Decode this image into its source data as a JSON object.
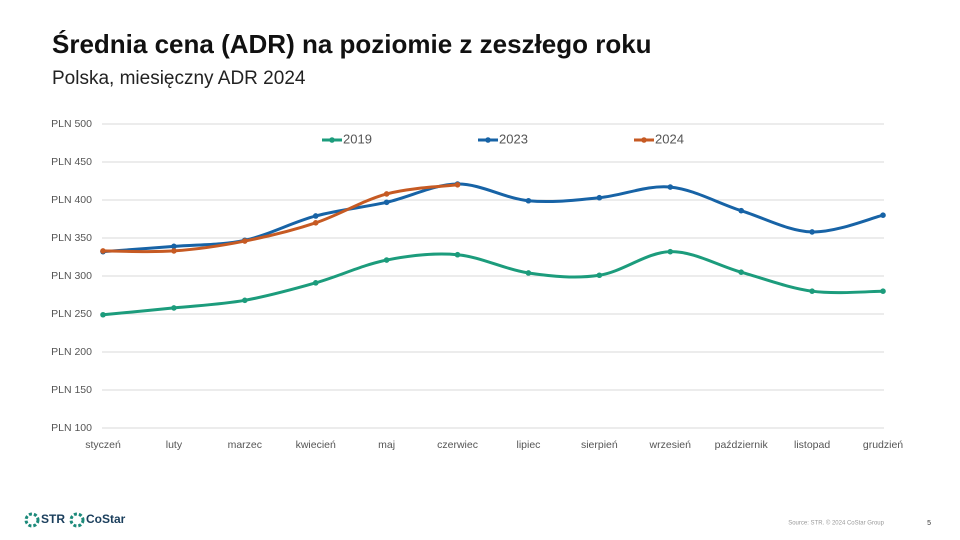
{
  "chart_data": {
    "type": "line",
    "title": "Średnia cena (ADR) na poziomie z zeszłego roku",
    "subtitle": "Polska, miesięczny ADR 2024",
    "categories": [
      "styczeń",
      "luty",
      "marzec",
      "kwiecień",
      "maj",
      "czerwiec",
      "lipiec",
      "sierpień",
      "wrzesień",
      "październik",
      "listopad",
      "grudzień"
    ],
    "series": [
      {
        "name": "2019",
        "color": "#1c9c7c",
        "values": [
          249,
          258,
          268,
          291,
          321,
          328,
          304,
          301,
          332,
          305,
          280,
          280
        ]
      },
      {
        "name": "2023",
        "color": "#1763a6",
        "values": [
          332,
          339,
          347,
          379,
          397,
          421,
          399,
          403,
          417,
          386,
          358,
          380
        ]
      },
      {
        "name": "2024",
        "color": "#c65a23",
        "values": [
          333,
          333,
          346,
          370,
          408,
          420,
          null,
          null,
          null,
          null,
          null,
          null
        ]
      }
    ],
    "ylim": [
      100,
      500
    ],
    "yticks": [
      {
        "value": 100,
        "label": "PLN 100"
      },
      {
        "value": 150,
        "label": "PLN 150"
      },
      {
        "value": 200,
        "label": "PLN 200"
      },
      {
        "value": 250,
        "label": "PLN 250"
      },
      {
        "value": 300,
        "label": "PLN 300"
      },
      {
        "value": 350,
        "label": "PLN 350"
      },
      {
        "value": 400,
        "label": "PLN 400"
      },
      {
        "value": 450,
        "label": "PLN 450"
      },
      {
        "value": 500,
        "label": "PLN 500"
      }
    ],
    "grid": true,
    "smooth": true,
    "legend": "top"
  },
  "footer": {
    "logos": [
      "STR",
      "CoStar"
    ],
    "source": "Source: STR. © 2024 CoStar Group",
    "page_number": "5"
  }
}
